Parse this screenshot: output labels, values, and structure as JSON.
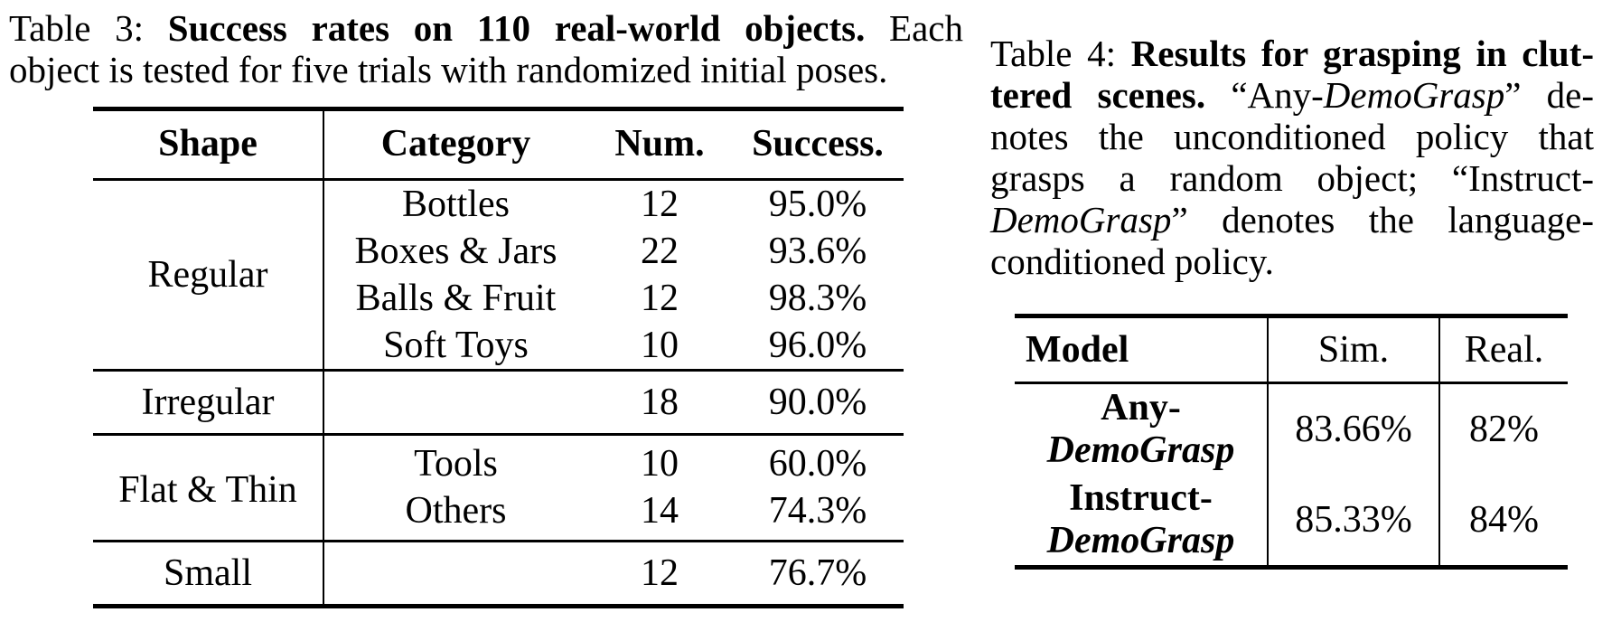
{
  "styles": {
    "background": "#ffffff",
    "text_color": "#000000",
    "rule_color": "#000000"
  },
  "table3": {
    "caption": {
      "label": "Table 3: ",
      "title_bold": "Success rates on 110 real-world objects.",
      "line1_tail": " Each",
      "line2": "object is tested for five trials with randomized initial poses."
    },
    "headers": [
      "Shape",
      "Category",
      "Num.",
      "Success."
    ],
    "groups": [
      {
        "shape": "Regular",
        "rows": [
          {
            "category": "Bottles",
            "num": "12",
            "success": "95.0%"
          },
          {
            "category": "Boxes & Jars",
            "num": "22",
            "success": "93.6%"
          },
          {
            "category": "Balls & Fruit",
            "num": "12",
            "success": "98.3%"
          },
          {
            "category": "Soft Toys",
            "num": "10",
            "success": "96.0%"
          }
        ]
      },
      {
        "shape": "Irregular",
        "rows": [
          {
            "category": "",
            "num": "18",
            "success": "90.0%"
          }
        ]
      },
      {
        "shape": "Flat & Thin",
        "rows": [
          {
            "category": "Tools",
            "num": "10",
            "success": "60.0%"
          },
          {
            "category": "Others",
            "num": "14",
            "success": "74.3%"
          }
        ]
      },
      {
        "shape": "Small",
        "rows": [
          {
            "category": "",
            "num": "12",
            "success": "76.7%"
          }
        ]
      }
    ]
  },
  "table4": {
    "caption_lines": [
      [
        {
          "t": "Table 4: "
        },
        {
          "t": "Results for grasping in clut-"
        }
      ],
      [
        {
          "t": "tered scenes."
        },
        {
          "t": " “Any-"
        },
        {
          "t": "DemoGrasp"
        },
        {
          "t": "” de-"
        }
      ],
      [
        {
          "t": "notes the unconditioned policy that"
        }
      ],
      [
        {
          "t": "grasps a random object; “Instruct-"
        }
      ],
      [
        {
          "t": "DemoGrasp"
        },
        {
          "t": "” denotes the language-"
        }
      ],
      [
        {
          "t": "conditioned policy."
        }
      ]
    ],
    "headers": [
      "Model",
      "Sim.",
      "Real."
    ],
    "rows": [
      {
        "model_prefix": "Any-",
        "model_name": "DemoGrasp",
        "sim": "83.66%",
        "real": "82%"
      },
      {
        "model_prefix": "Instruct-",
        "model_name": "DemoGrasp",
        "sim": "85.33%",
        "real": "84%"
      }
    ]
  }
}
